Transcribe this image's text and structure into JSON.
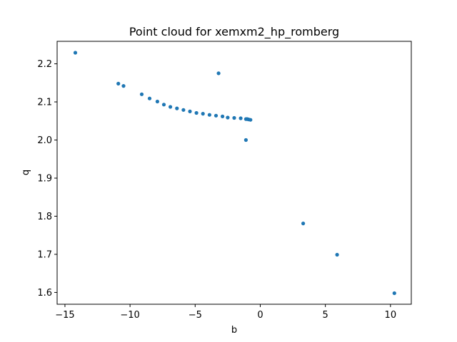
{
  "chart_data": {
    "type": "scatter",
    "title": "Point cloud for xemxm2_hp_romberg",
    "xlabel": "b",
    "ylabel": "q",
    "xlim": [
      -15.6,
      11.6
    ],
    "ylim": [
      1.569,
      2.259
    ],
    "xticks": [
      -15,
      -10,
      -5,
      0,
      5,
      10
    ],
    "yticks": [
      1.6,
      1.7,
      1.8,
      1.9,
      2.0,
      2.1,
      2.2
    ],
    "xtick_labels": [
      "−15",
      "−10",
      "−5",
      "0",
      "5",
      "10"
    ],
    "ytick_labels": [
      "1.6",
      "1.7",
      "1.8",
      "1.9",
      "2.0",
      "2.1",
      "2.2"
    ],
    "grid": false,
    "legend": false,
    "marker_color": "#1f77b4",
    "series": [
      {
        "x": [
          -14.2,
          -10.9,
          -10.5,
          -9.1,
          -8.5,
          -7.9,
          -7.4,
          -6.9,
          -6.4,
          -5.9,
          -5.4,
          -4.9,
          -4.4,
          -3.9,
          -3.4,
          -3.2,
          -2.9,
          -2.5,
          -2.0,
          -1.5,
          -1.1,
          -1.0,
          -0.9,
          -0.75,
          -1.1,
          3.3,
          5.9,
          10.3
        ],
        "y": [
          2.229,
          2.148,
          2.142,
          2.12,
          2.109,
          2.101,
          2.093,
          2.087,
          2.083,
          2.079,
          2.075,
          2.071,
          2.069,
          2.066,
          2.064,
          2.175,
          2.062,
          2.059,
          2.058,
          2.057,
          2.055,
          2.055,
          2.054,
          2.053,
          2.0,
          1.781,
          1.699,
          1.598
        ]
      }
    ]
  }
}
